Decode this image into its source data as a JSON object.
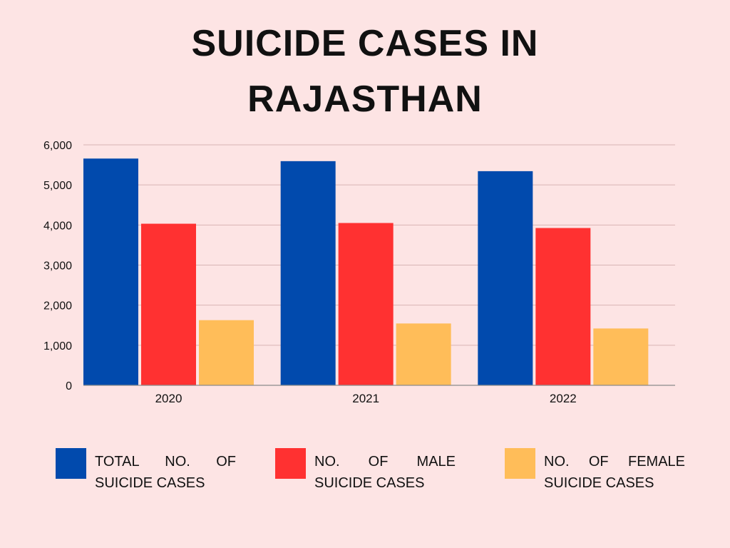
{
  "title_lines": [
    "SUICIDE CASES IN",
    "RAJASTHAN"
  ],
  "chart_data": {
    "type": "bar",
    "categories": [
      "2020",
      "2021",
      "2022"
    ],
    "series": [
      {
        "name": "TOTAL NO. OF SUICIDE CASES",
        "color": "#014aad",
        "values": [
          5658,
          5593,
          5343
        ]
      },
      {
        "name": "NO. OF MALE SUICIDE CASES",
        "color": "#ff3131",
        "values": [
          4032,
          4050,
          3925
        ]
      },
      {
        "name": "NO. OF FEMALE SUICIDE CASES",
        "color": "#ffbd59",
        "values": [
          1626,
          1543,
          1418
        ]
      }
    ],
    "y_ticks": [
      "0",
      "1,000",
      "2,000",
      "3,000",
      "4,000",
      "5,000",
      "6,000"
    ],
    "ylim": [
      0,
      6000
    ],
    "grid": true,
    "legend_position": "bottom"
  }
}
